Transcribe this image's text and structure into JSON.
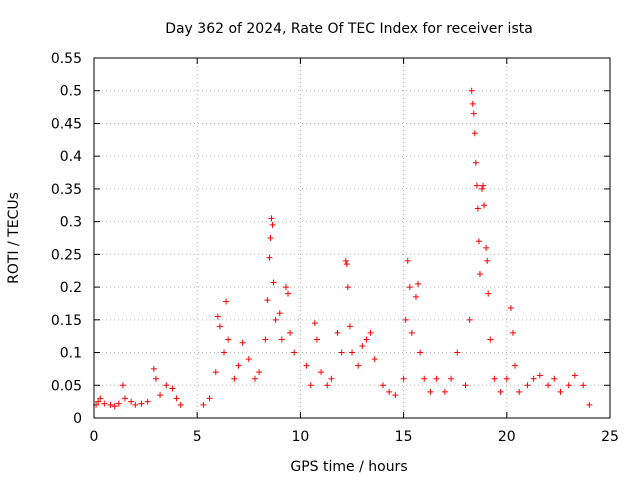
{
  "chart_data": {
    "type": "scatter",
    "title": "Day 362 of 2024, Rate Of TEC Index for receiver ista",
    "xlabel": "GPS time / hours",
    "ylabel": "ROTI / TECUs",
    "xlim": [
      0,
      25
    ],
    "ylim": [
      0,
      0.55
    ],
    "xticks": [
      "0",
      "5",
      "10",
      "15",
      "20",
      "25"
    ],
    "yticks": [
      "0",
      "0.05",
      "0.1",
      "0.15",
      "0.2",
      "0.25",
      "0.3",
      "0.35",
      "0.4",
      "0.45",
      "0.5",
      "0.55"
    ],
    "grid": true,
    "legend": "none",
    "marker": "plus",
    "color": "#ff0000",
    "series": [
      {
        "points": [
          [
            0.1,
            0.02
          ],
          [
            0.2,
            0.025
          ],
          [
            0.3,
            0.03
          ],
          [
            0.5,
            0.022
          ],
          [
            0.8,
            0.02
          ],
          [
            1.0,
            0.018
          ],
          [
            1.2,
            0.022
          ],
          [
            1.4,
            0.05
          ],
          [
            1.5,
            0.03
          ],
          [
            1.8,
            0.025
          ],
          [
            2.0,
            0.02
          ],
          [
            2.3,
            0.022
          ],
          [
            2.6,
            0.025
          ],
          [
            2.9,
            0.075
          ],
          [
            3.0,
            0.06
          ],
          [
            3.2,
            0.035
          ],
          [
            3.5,
            0.05
          ],
          [
            3.8,
            0.045
          ],
          [
            4.0,
            0.03
          ],
          [
            4.2,
            0.02
          ],
          [
            5.3,
            0.02
          ],
          [
            5.6,
            0.03
          ],
          [
            5.9,
            0.07
          ],
          [
            6.0,
            0.155
          ],
          [
            6.1,
            0.14
          ],
          [
            6.3,
            0.1
          ],
          [
            6.4,
            0.178
          ],
          [
            6.5,
            0.12
          ],
          [
            6.8,
            0.06
          ],
          [
            7.0,
            0.08
          ],
          [
            7.2,
            0.115
          ],
          [
            7.5,
            0.09
          ],
          [
            7.8,
            0.06
          ],
          [
            8.0,
            0.07
          ],
          [
            8.3,
            0.12
          ],
          [
            8.4,
            0.18
          ],
          [
            8.5,
            0.245
          ],
          [
            8.55,
            0.275
          ],
          [
            8.6,
            0.305
          ],
          [
            8.65,
            0.295
          ],
          [
            8.7,
            0.207
          ],
          [
            8.8,
            0.15
          ],
          [
            9.0,
            0.16
          ],
          [
            9.1,
            0.12
          ],
          [
            9.3,
            0.2
          ],
          [
            9.4,
            0.19
          ],
          [
            9.5,
            0.13
          ],
          [
            9.7,
            0.1
          ],
          [
            10.3,
            0.08
          ],
          [
            10.5,
            0.05
          ],
          [
            10.7,
            0.145
          ],
          [
            10.8,
            0.12
          ],
          [
            11.0,
            0.07
          ],
          [
            11.3,
            0.05
          ],
          [
            11.5,
            0.06
          ],
          [
            11.8,
            0.13
          ],
          [
            12.0,
            0.1
          ],
          [
            12.2,
            0.24
          ],
          [
            12.25,
            0.235
          ],
          [
            12.3,
            0.2
          ],
          [
            12.4,
            0.14
          ],
          [
            12.5,
            0.1
          ],
          [
            12.8,
            0.08
          ],
          [
            13.0,
            0.11
          ],
          [
            13.2,
            0.12
          ],
          [
            13.4,
            0.13
          ],
          [
            13.6,
            0.09
          ],
          [
            14.0,
            0.05
          ],
          [
            14.3,
            0.04
          ],
          [
            14.6,
            0.035
          ],
          [
            15.0,
            0.06
          ],
          [
            15.1,
            0.15
          ],
          [
            15.2,
            0.24
          ],
          [
            15.3,
            0.2
          ],
          [
            15.4,
            0.13
          ],
          [
            15.6,
            0.185
          ],
          [
            15.7,
            0.205
          ],
          [
            15.8,
            0.1
          ],
          [
            16.0,
            0.06
          ],
          [
            16.3,
            0.04
          ],
          [
            16.6,
            0.06
          ],
          [
            17.0,
            0.04
          ],
          [
            17.3,
            0.06
          ],
          [
            17.6,
            0.1
          ],
          [
            18.0,
            0.05
          ],
          [
            18.2,
            0.15
          ],
          [
            18.3,
            0.5
          ],
          [
            18.35,
            0.48
          ],
          [
            18.4,
            0.465
          ],
          [
            18.45,
            0.435
          ],
          [
            18.5,
            0.39
          ],
          [
            18.55,
            0.355
          ],
          [
            18.6,
            0.32
          ],
          [
            18.65,
            0.27
          ],
          [
            18.7,
            0.22
          ],
          [
            18.8,
            0.35
          ],
          [
            18.85,
            0.355
          ],
          [
            18.9,
            0.325
          ],
          [
            19.0,
            0.26
          ],
          [
            19.05,
            0.24
          ],
          [
            19.1,
            0.19
          ],
          [
            19.2,
            0.12
          ],
          [
            19.4,
            0.06
          ],
          [
            19.7,
            0.04
          ],
          [
            20.0,
            0.06
          ],
          [
            20.2,
            0.168
          ],
          [
            20.3,
            0.13
          ],
          [
            20.4,
            0.08
          ],
          [
            20.6,
            0.04
          ],
          [
            21.0,
            0.05
          ],
          [
            21.3,
            0.06
          ],
          [
            21.6,
            0.065
          ],
          [
            22.0,
            0.05
          ],
          [
            22.3,
            0.06
          ],
          [
            22.6,
            0.04
          ],
          [
            23.0,
            0.05
          ],
          [
            23.3,
            0.065
          ],
          [
            23.7,
            0.05
          ],
          [
            24.0,
            0.02
          ]
        ]
      }
    ]
  }
}
